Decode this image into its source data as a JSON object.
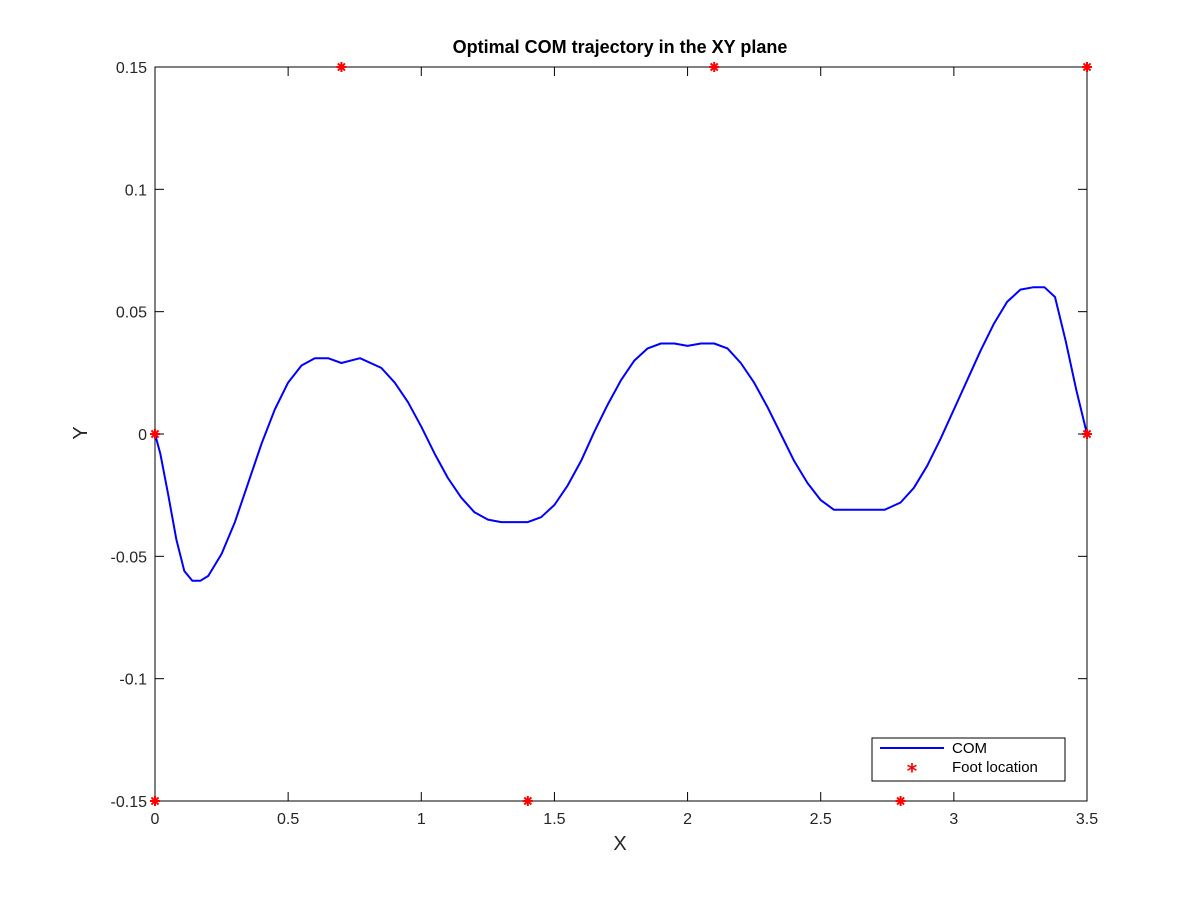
{
  "chart_data": {
    "type": "line",
    "title": "Optimal COM trajectory in the XY plane",
    "xlabel": "X",
    "ylabel": "Y",
    "xlim": [
      0,
      3.5
    ],
    "ylim": [
      -0.15,
      0.15
    ],
    "xticks": [
      0,
      0.5,
      1,
      1.5,
      2,
      2.5,
      3,
      3.5
    ],
    "xtick_labels": [
      "0",
      "0.5",
      "1",
      "1.5",
      "2",
      "2.5",
      "3",
      "3.5"
    ],
    "yticks": [
      -0.15,
      -0.1,
      -0.05,
      0,
      0.05,
      0.1,
      0.15
    ],
    "ytick_labels": [
      "-0.15",
      "-0.1",
      "-0.05",
      "0",
      "0.05",
      "0.1",
      "0.15"
    ],
    "grid": false,
    "legend_position": "bottom-right",
    "series": [
      {
        "name": "COM",
        "style": "line",
        "color": "#0000ff",
        "x": [
          0,
          0.02,
          0.05,
          0.08,
          0.11,
          0.14,
          0.17,
          0.2,
          0.25,
          0.3,
          0.35,
          0.4,
          0.45,
          0.5,
          0.55,
          0.6,
          0.65,
          0.7,
          0.77,
          0.85,
          0.9,
          0.95,
          1.0,
          1.05,
          1.1,
          1.15,
          1.2,
          1.25,
          1.3,
          1.35,
          1.4,
          1.45,
          1.5,
          1.55,
          1.6,
          1.65,
          1.7,
          1.75,
          1.8,
          1.85,
          1.9,
          1.95,
          2.0,
          2.05,
          2.1,
          2.15,
          2.2,
          2.25,
          2.3,
          2.35,
          2.4,
          2.45,
          2.5,
          2.55,
          2.6,
          2.65,
          2.7,
          2.74,
          2.8,
          2.85,
          2.9,
          2.95,
          3.0,
          3.05,
          3.1,
          3.15,
          3.2,
          3.25,
          3.3,
          3.34,
          3.38,
          3.42,
          3.46,
          3.5
        ],
        "y": [
          0,
          -0.008,
          -0.025,
          -0.043,
          -0.056,
          -0.06,
          -0.06,
          -0.058,
          -0.049,
          -0.036,
          -0.02,
          -0.004,
          0.01,
          0.021,
          0.028,
          0.031,
          0.031,
          0.029,
          0.031,
          0.027,
          0.021,
          0.013,
          0.003,
          -0.008,
          -0.018,
          -0.026,
          -0.032,
          -0.035,
          -0.036,
          -0.036,
          -0.036,
          -0.034,
          -0.029,
          -0.021,
          -0.011,
          0.001,
          0.012,
          0.022,
          0.03,
          0.035,
          0.037,
          0.037,
          0.036,
          0.037,
          0.037,
          0.035,
          0.029,
          0.021,
          0.011,
          0.0,
          -0.011,
          -0.02,
          -0.027,
          -0.031,
          -0.031,
          -0.031,
          -0.031,
          -0.031,
          -0.028,
          -0.022,
          -0.013,
          -0.002,
          0.01,
          0.022,
          0.034,
          0.045,
          0.054,
          0.059,
          0.06,
          0.06,
          0.056,
          0.038,
          0.018,
          0.0
        ]
      },
      {
        "name": "Foot location",
        "style": "markers",
        "marker": "*",
        "color": "#ff0000",
        "x": [
          0,
          0,
          0.7,
          1.4,
          2.1,
          2.8,
          3.5,
          3.5
        ],
        "y": [
          0,
          -0.15,
          0.15,
          -0.15,
          0.15,
          -0.15,
          0.15,
          0
        ]
      }
    ]
  }
}
